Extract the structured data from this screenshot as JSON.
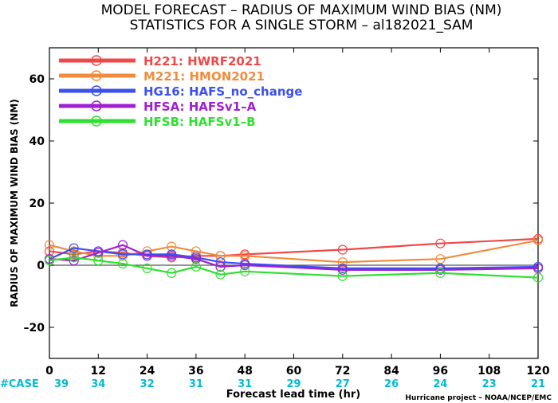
{
  "chart_data": {
    "type": "line",
    "title": "MODEL FORECAST – RADIUS OF MAXIMUM WIND BIAS (NM)",
    "subtitle": "STATISTICS FOR A SINGLE STORM – al182021_SAM",
    "xlabel": "Forecast lead time (hr)",
    "ylabel": "RADIUS OF MAXIMUM WIND BIAS (NM)",
    "xlim": [
      0,
      120
    ],
    "ylim": [
      -30,
      70
    ],
    "xticks": [
      0,
      12,
      24,
      36,
      48,
      60,
      72,
      84,
      96,
      108,
      120
    ],
    "yticks": [
      -20,
      0,
      20,
      40,
      60
    ],
    "case_label": "#CASE",
    "cases": [
      39,
      34,
      32,
      31,
      31,
      29,
      27,
      26,
      24,
      23,
      21
    ],
    "credit": "Hurricane project – NOAA/NCEP/EMC",
    "zero_line": true,
    "legend_position": "top-left",
    "series": [
      {
        "name": "H221: HWRF2021",
        "color": "#f04848",
        "x": [
          0,
          6,
          12,
          18,
          24,
          30,
          36,
          42,
          48,
          72,
          96,
          120
        ],
        "y": [
          4.5,
          3.5,
          4.5,
          4.0,
          3.0,
          2.5,
          3.0,
          3.0,
          3.5,
          5.0,
          7.0,
          8.5
        ]
      },
      {
        "name": "M221: HMON2021",
        "color": "#f08c3c",
        "x": [
          0,
          6,
          12,
          18,
          24,
          30,
          36,
          42,
          48,
          72,
          96,
          120
        ],
        "y": [
          6.5,
          4.5,
          3.0,
          3.0,
          4.5,
          6.0,
          4.5,
          3.0,
          3.0,
          1.0,
          2.0,
          8.0
        ]
      },
      {
        "name": "HG16: HAFS_no_change",
        "color": "#3c4ff0",
        "x": [
          0,
          6,
          12,
          18,
          24,
          30,
          36,
          42,
          48,
          72,
          96,
          120
        ],
        "y": [
          2.0,
          5.5,
          4.5,
          3.5,
          3.5,
          3.5,
          2.5,
          1.0,
          0.5,
          -1.0,
          -1.0,
          -0.5
        ]
      },
      {
        "name": "HFSA: HAFSv1–A",
        "color": "#a020d0",
        "x": [
          0,
          6,
          12,
          18,
          24,
          30,
          36,
          42,
          48,
          72,
          96,
          120
        ],
        "y": [
          2.0,
          1.5,
          4.0,
          6.5,
          3.0,
          3.0,
          2.0,
          -0.5,
          0.0,
          -1.5,
          -1.5,
          -1.0
        ]
      },
      {
        "name": "HFSB: HAFSv1–B",
        "color": "#30e030",
        "x": [
          0,
          6,
          12,
          18,
          24,
          30,
          36,
          42,
          48,
          72,
          96,
          120
        ],
        "y": [
          1.5,
          2.5,
          1.5,
          0.5,
          -1.0,
          -2.5,
          -0.5,
          -3.0,
          -2.0,
          -3.5,
          -2.5,
          -4.0
        ]
      }
    ]
  }
}
